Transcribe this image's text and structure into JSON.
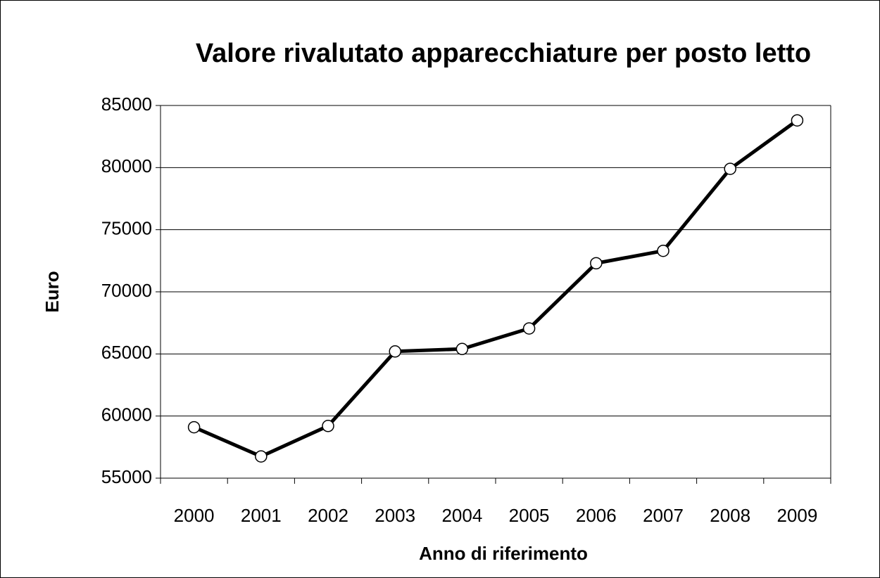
{
  "chart_data": {
    "type": "line",
    "title": "Valore rivalutato apparecchiature per posto letto",
    "x_label": "Anno di riferimento",
    "y_label": "Euro",
    "categories": [
      "2000",
      "2001",
      "2002",
      "2003",
      "2004",
      "2005",
      "2006",
      "2007",
      "2008",
      "2009"
    ],
    "series": [
      {
        "name": "Euro",
        "color": "#000000",
        "values": [
          59100,
          56750,
          59200,
          65200,
          65400,
          67050,
          72300,
          73300,
          79900,
          83800
        ]
      }
    ],
    "ylim": [
      55000,
      85000
    ],
    "yticks": [
      55000,
      60000,
      65000,
      70000,
      75000,
      80000,
      85000
    ],
    "grid": true
  }
}
